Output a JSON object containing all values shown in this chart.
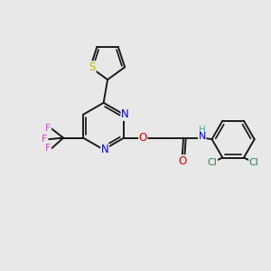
{
  "bg_color": "#e8e8e8",
  "bond_color": "#1a1a1a",
  "bond_width": 1.4,
  "atom_colors": {
    "S": "#b8b800",
    "N": "#0000cc",
    "O": "#cc0000",
    "F": "#cc44cc",
    "Cl": "#228844",
    "H": "#44aaaa",
    "C": "#1a1a1a"
  },
  "figsize": [
    3.0,
    3.0
  ],
  "dpi": 100
}
